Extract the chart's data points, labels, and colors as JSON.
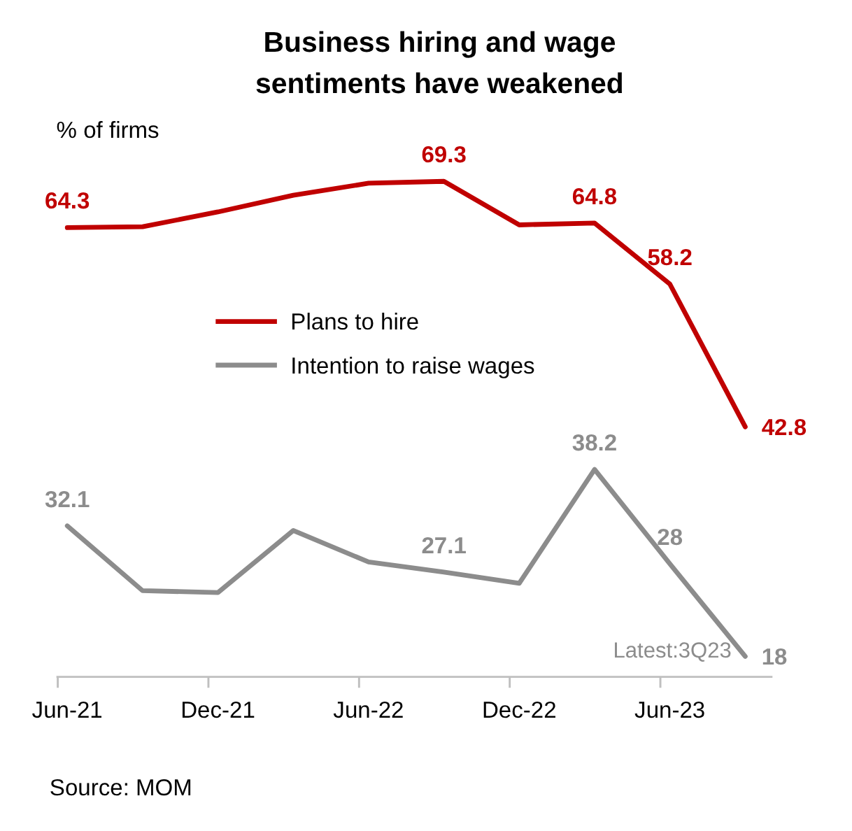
{
  "chart_data": {
    "type": "line",
    "title": "Business hiring and wage sentiments have weakened",
    "ylabel": "% of firms",
    "categories": [
      "Jun-21",
      null,
      "Dec-21",
      null,
      "Jun-22",
      null,
      "Dec-22",
      null,
      "Jun-23",
      null
    ],
    "series": [
      {
        "name": "Plans to hire",
        "color": "#c00000",
        "values": [
          64.3,
          64.4,
          66.0,
          67.8,
          69.1,
          69.3,
          64.6,
          64.8,
          58.2,
          42.8
        ],
        "value_labels": [
          "64.3",
          null,
          null,
          null,
          null,
          "69.3",
          null,
          "64.8",
          "58.2",
          "42.8"
        ]
      },
      {
        "name": "Intention to raise wages",
        "color": "#8c8c8c",
        "values": [
          32.1,
          25.1,
          24.9,
          31.6,
          28.2,
          27.1,
          25.9,
          38.2,
          28,
          18
        ],
        "value_labels": [
          "32.1",
          null,
          null,
          null,
          null,
          "27.1",
          null,
          "38.2",
          "28",
          "18"
        ]
      }
    ],
    "tick_labels": "x",
    "legend": "center",
    "marker": "none",
    "line_style": "solid",
    "annotations": [
      "Latest:3Q23",
      "Source: MOM"
    ]
  }
}
